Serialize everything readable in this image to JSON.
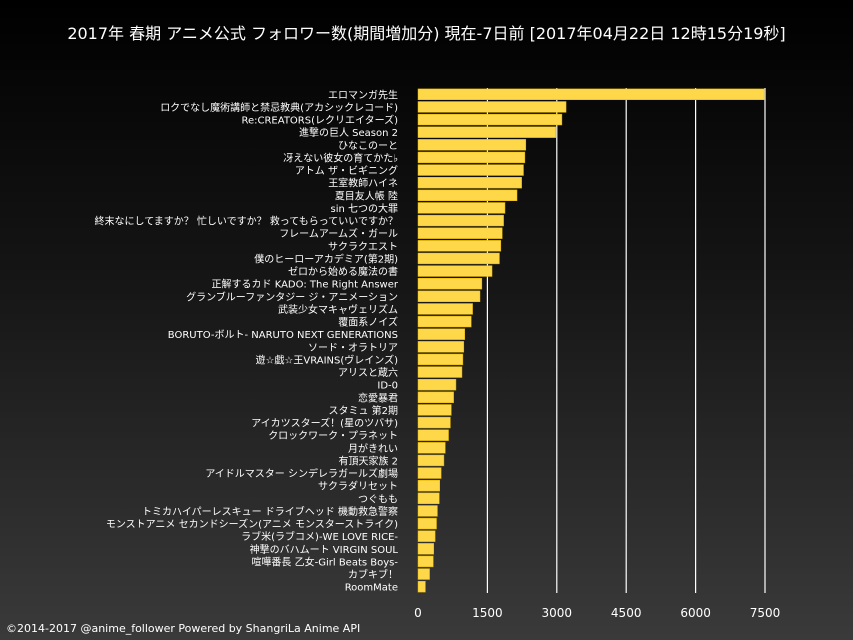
{
  "title": "2017年 春期 アニメ公式 フォロワー数(期間増加分) 現在-7日前 [2017年04月22日 12時15分19秒]",
  "footer": "©2014-2017 @anime_follower Powered by ShangriLa Anime API",
  "colors": {
    "bar": "#ffd84a",
    "bar_edge": "#e0b400",
    "grid": "#ffffff",
    "text": "#ffffff"
  },
  "chart_data": {
    "type": "bar",
    "orientation": "horizontal",
    "title": "2017年 春期 アニメ公式 フォロワー数(期間増加分) 現在-7日前 [2017年04月22日 12時15分19秒]",
    "xlim": [
      0,
      7800
    ],
    "xticks": [
      0,
      1500,
      3000,
      4500,
      6000,
      7500
    ],
    "grid": true,
    "categories": [
      "エロマンガ先生",
      "ロクでなし魔術講師と禁忌教典(アカシックレコード)",
      "Re:CREATORS(レクリエイターズ)",
      "進撃の巨人 Season 2",
      "ひなこのーと",
      "冴えない彼女の育てかた♭",
      "アトム ザ・ビギニング",
      "王室教師ハイネ",
      "夏目友人帳 陸",
      "sin 七つの大罪",
      "終末なにしてますか？ 忙しいですか？ 救ってもらっていいですか？",
      "フレームアームズ・ガール",
      "サクラクエスト",
      "僕のヒーローアカデミア(第2期)",
      "ゼロから始める魔法の書",
      "正解するカド KADO: The Right Answer",
      "グランブルーファンタジー ジ・アニメーション",
      "武装少女マキャヴェリズム",
      "覆面系ノイズ",
      "BORUTO-ボルト- NARUTO NEXT GENERATIONS",
      "ソード・オラトリア",
      "遊☆戯☆王VRAINS(ヴレインズ)",
      "アリスと蔵六",
      "ID-0",
      "恋愛暴君",
      "スタミュ 第2期",
      "アイカツスターズ！(星のツバサ)",
      "クロックワーク・プラネット",
      "月がきれい",
      "有頂天家族 2",
      "アイドルマスター シンデレラガールズ劇場",
      "サクラダリセット",
      "つぐもも",
      "トミカハイパーレスキュー ドライブヘッド 機動救急警察",
      "モンストアニメ セカンドシーズン(アニメ モンスターストライク)",
      "ラブ米(ラブコメ)-WE LOVE RICE-",
      "神撃のバハムート VIRGIN SOUL",
      "喧嘩番長 乙女-Girl Beats Boys-",
      "カブキブ！",
      "RoomMate"
    ],
    "values": [
      7480,
      3200,
      3110,
      2980,
      2330,
      2310,
      2280,
      2240,
      2140,
      1880,
      1850,
      1820,
      1790,
      1760,
      1600,
      1380,
      1340,
      1180,
      1150,
      1010,
      990,
      970,
      950,
      820,
      770,
      720,
      700,
      660,
      590,
      560,
      500,
      470,
      460,
      420,
      400,
      370,
      340,
      330,
      250,
      160
    ]
  }
}
